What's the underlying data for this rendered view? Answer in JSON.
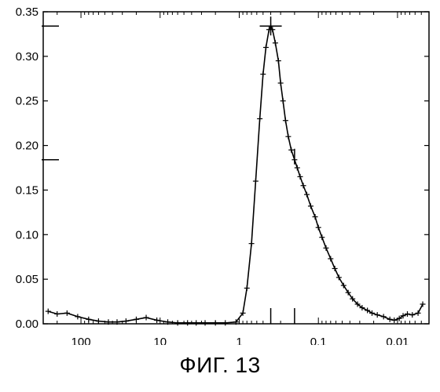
{
  "caption": "ФИГ. 13",
  "chart_data": {
    "type": "line",
    "title": "",
    "xlabel": "",
    "ylabel": "",
    "x_scale": "log",
    "x_reversed": true,
    "xlim": [
      300,
      0.004
    ],
    "ylim": [
      0,
      0.35
    ],
    "x_ticks": [
      {
        "value": 100,
        "label": "100"
      },
      {
        "value": 10,
        "label": "10"
      },
      {
        "value": 1,
        "label": "1"
      },
      {
        "value": 0.1,
        "label": "0.1"
      },
      {
        "value": 0.01,
        "label": "0.01"
      }
    ],
    "y_ticks": [
      {
        "value": 0,
        "label": "0.00"
      },
      {
        "value": 0.05,
        "label": "0.05"
      },
      {
        "value": 0.1,
        "label": "0.10"
      },
      {
        "value": 0.15,
        "label": "0.15"
      },
      {
        "value": 0.2,
        "label": "0.20"
      },
      {
        "value": 0.25,
        "label": "0.25"
      },
      {
        "value": 0.3,
        "label": "0.30"
      },
      {
        "value": 0.35,
        "label": "0.35"
      }
    ],
    "grid": false,
    "axis_markers": [
      {
        "axis": "y",
        "value": 0.334
      },
      {
        "axis": "y",
        "value": 0.184
      },
      {
        "axis": "x",
        "value": 0.4
      },
      {
        "axis": "x",
        "value": 0.2
      }
    ],
    "peak_marker": {
      "x": 0.4,
      "y": 0.334
    },
    "shoulder_marker": {
      "x": 0.2,
      "y": 0.184
    },
    "series": [
      {
        "marker": "plus",
        "x": [
          260,
          200,
          150,
          110,
          80,
          60,
          45,
          35,
          27,
          20,
          15,
          11,
          8,
          6,
          4.5,
          3.5,
          2.7,
          2,
          1.5,
          1.1,
          0.9,
          0.8,
          0.7,
          0.62,
          0.55,
          0.5,
          0.46,
          0.42,
          0.4,
          0.38,
          0.35,
          0.32,
          0.3,
          0.28,
          0.26,
          0.24,
          0.22,
          0.2,
          0.185,
          0.17,
          0.155,
          0.14,
          0.125,
          0.11,
          0.1,
          0.09,
          0.08,
          0.07,
          0.062,
          0.055,
          0.048,
          0.042,
          0.037,
          0.032,
          0.028,
          0.024,
          0.021,
          0.018,
          0.015,
          0.0125,
          0.011,
          0.0095,
          0.0085,
          0.0075,
          0.0065,
          0.0055,
          0.0048
        ],
        "values": [
          0.014,
          0.011,
          0.012,
          0.008,
          0.005,
          0.003,
          0.002,
          0.002,
          0.003,
          0.005,
          0.007,
          0.004,
          0.002,
          0.001,
          0.001,
          0.001,
          0.001,
          0.001,
          0.001,
          0.002,
          0.012,
          0.04,
          0.09,
          0.16,
          0.23,
          0.28,
          0.31,
          0.33,
          0.334,
          0.33,
          0.315,
          0.295,
          0.27,
          0.25,
          0.228,
          0.21,
          0.195,
          0.184,
          0.175,
          0.165,
          0.155,
          0.145,
          0.132,
          0.12,
          0.108,
          0.097,
          0.085,
          0.073,
          0.062,
          0.052,
          0.043,
          0.035,
          0.028,
          0.022,
          0.018,
          0.015,
          0.012,
          0.01,
          0.008,
          0.005,
          0.004,
          0.006,
          0.009,
          0.011,
          0.01,
          0.012,
          0.022
        ]
      }
    ]
  }
}
